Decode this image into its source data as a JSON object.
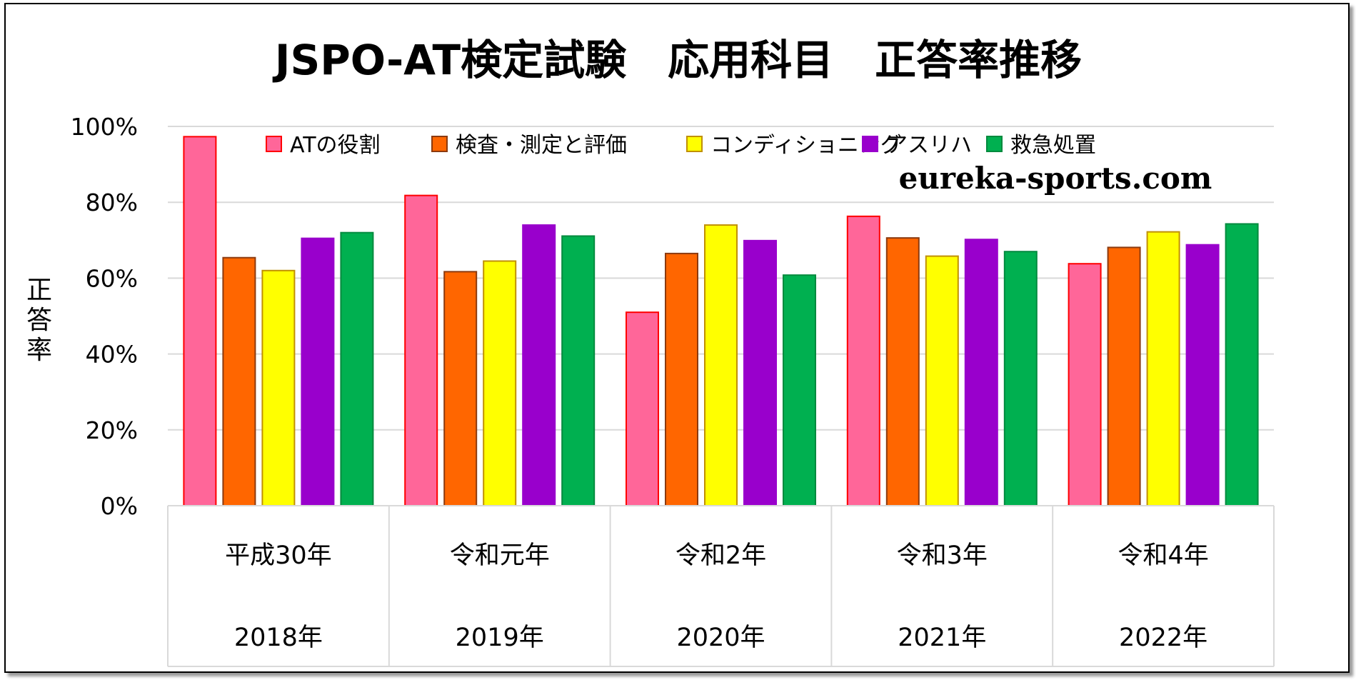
{
  "chart_data": {
    "type": "bar",
    "title": "JSPO-AT検定試験　応用科目　正答率推移",
    "ylabel": "正答率",
    "xlabel": "",
    "ylim": [
      0,
      100
    ],
    "yticks": [
      "0%",
      "20%",
      "40%",
      "60%",
      "80%",
      "100%"
    ],
    "grid": true,
    "legend_position": "top",
    "watermark": "eureka-sports.com",
    "categories": [
      {
        "era": "平成30年",
        "year": "2018年"
      },
      {
        "era": "令和元年",
        "year": "2019年"
      },
      {
        "era": "令和2年",
        "year": "2020年"
      },
      {
        "era": "令和3年",
        "year": "2021年"
      },
      {
        "era": "令和4年",
        "year": "2022年"
      }
    ],
    "series": [
      {
        "name": "ATの役割",
        "color": "#FF6699",
        "border": "#FF0000",
        "values": [
          97.3,
          81.8,
          51.0,
          76.3,
          63.8
        ]
      },
      {
        "name": "検査・測定と評価",
        "color": "#FF6600",
        "border": "#8B3A0F",
        "values": [
          65.4,
          61.7,
          66.5,
          70.6,
          68.1
        ]
      },
      {
        "name": "コンディショニング",
        "color": "#FFFF00",
        "border": "#C09000",
        "values": [
          62.0,
          64.5,
          74.0,
          65.8,
          72.2
        ]
      },
      {
        "name": "アスリハ",
        "color": "#9900CC",
        "border": "#9900CC",
        "values": [
          70.5,
          74.0,
          69.9,
          70.2,
          68.8
        ]
      },
      {
        "name": "救急処置",
        "color": "#00B050",
        "border": "#008A3E",
        "values": [
          72.0,
          71.1,
          60.8,
          67.0,
          74.3
        ]
      }
    ]
  }
}
